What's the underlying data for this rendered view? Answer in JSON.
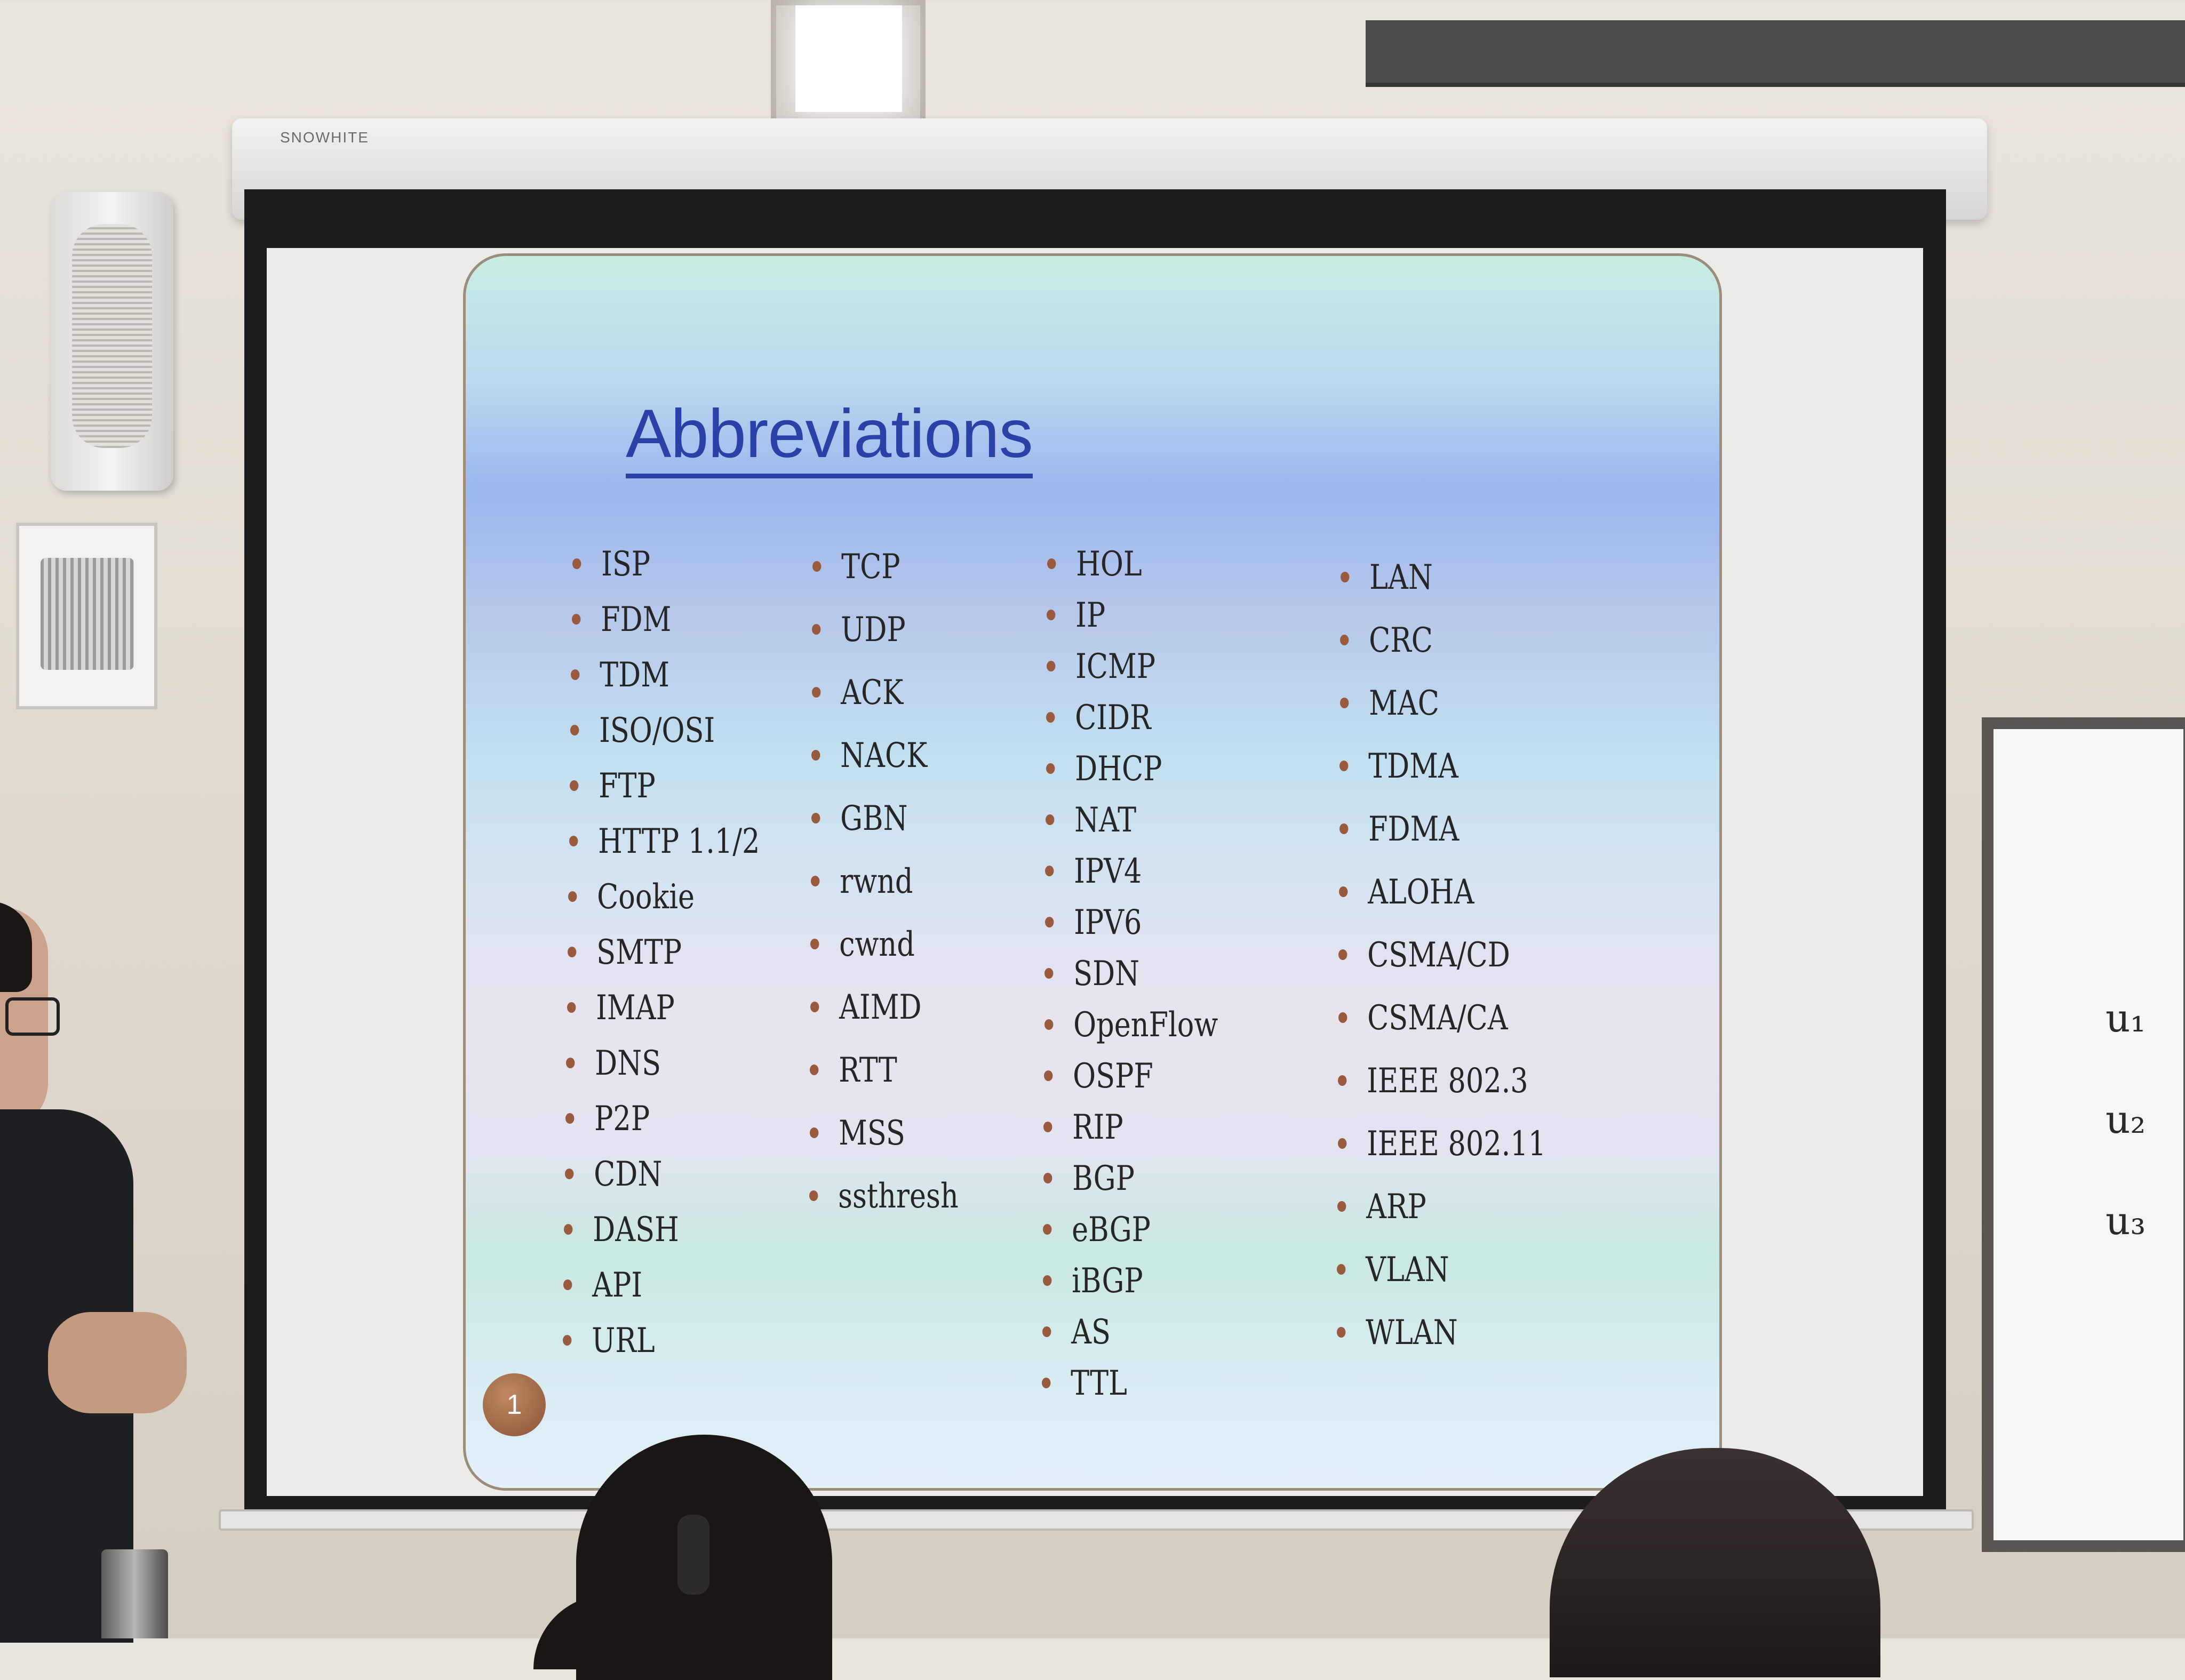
{
  "slide": {
    "title": "Abbreviations",
    "slide_number": "1",
    "columns": [
      {
        "items": [
          "ISP",
          "FDM",
          "TDM",
          "ISO/OSI",
          "FTP",
          "HTTP 1.1/2",
          "Cookie",
          "SMTP",
          "IMAP",
          "DNS",
          "P2P",
          "CDN",
          "DASH",
          "API",
          "URL"
        ]
      },
      {
        "items": [
          "TCP",
          "UDP",
          "ACK",
          "NACK",
          "GBN",
          "rwnd",
          "cwnd",
          "AIMD",
          "RTT",
          "MSS",
          "ssthresh"
        ]
      },
      {
        "items": [
          "HOL",
          "IP",
          "ICMP",
          "CIDR",
          "DHCP",
          "NAT",
          "IPV4",
          "IPV6",
          "SDN",
          "OpenFlow",
          "OSPF",
          "RIP",
          "BGP",
          "eBGP",
          "iBGP",
          "AS",
          "TTL"
        ]
      },
      {
        "items": [
          "LAN",
          "CRC",
          "MAC",
          "TDMA",
          "FDMA",
          "ALOHA",
          "CSMA/CD",
          "CSMA/CA",
          "IEEE 802.3",
          "IEEE 802.11",
          "ARP",
          "VLAN",
          "WLAN"
        ]
      }
    ],
    "bullet_color": "#9a5a3e",
    "title_color": "#2a41a8"
  },
  "screen_brand": "SNOWHITE",
  "whiteboard": {
    "marks": [
      "u₁",
      "u₂",
      "u₃"
    ]
  }
}
